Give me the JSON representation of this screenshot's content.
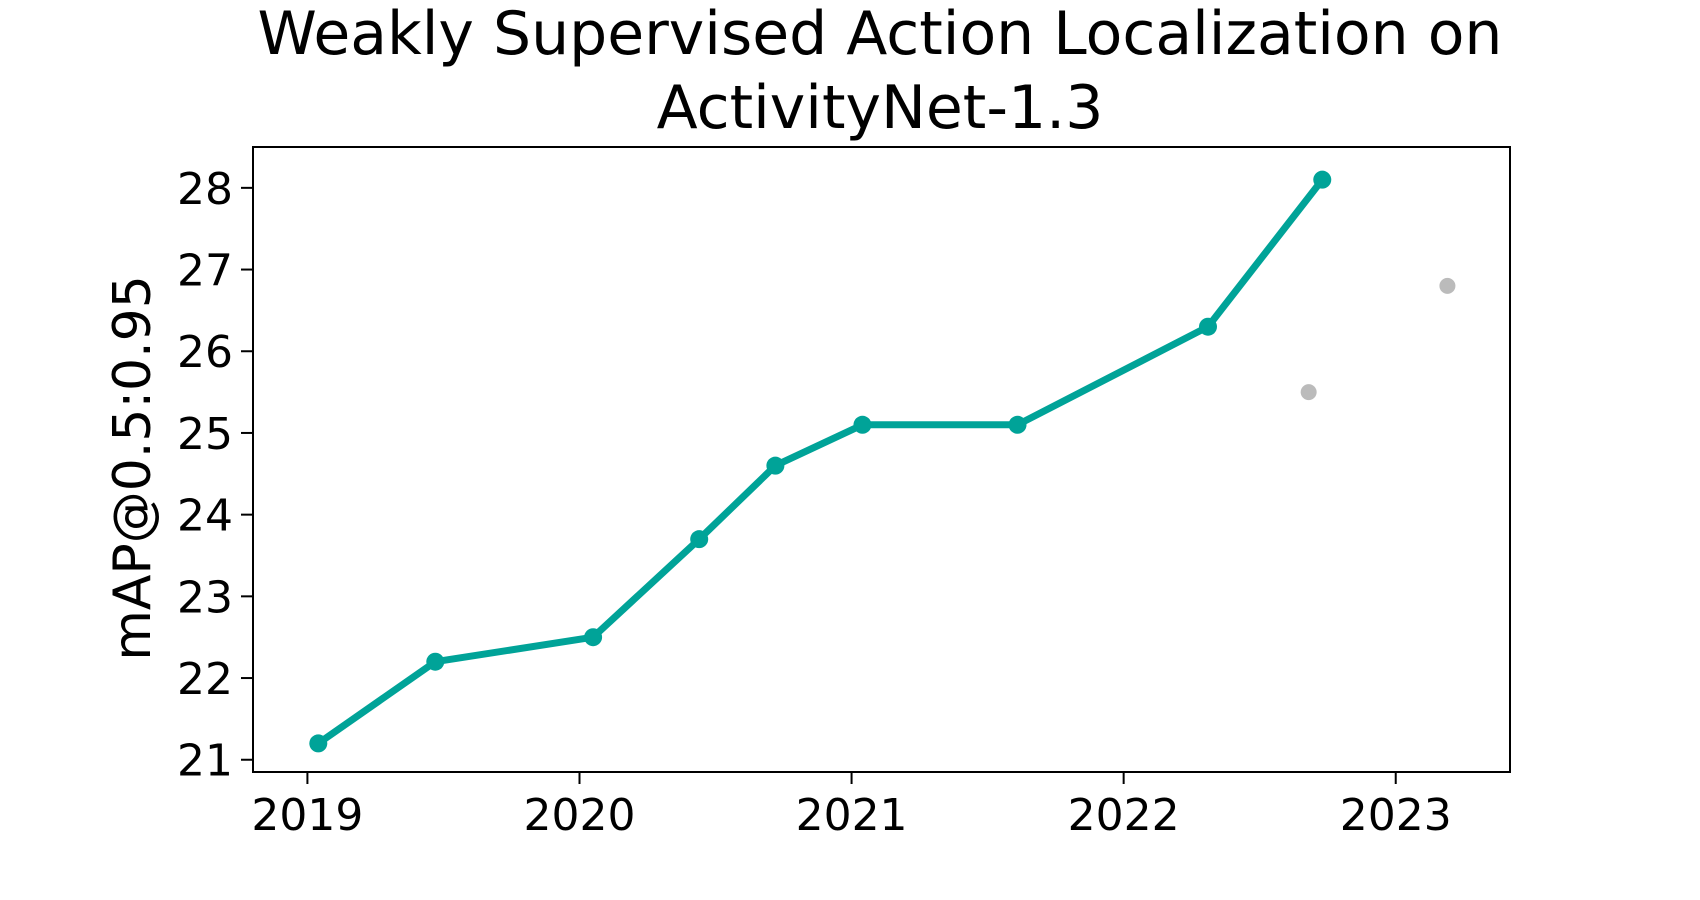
{
  "chart_data": {
    "type": "line",
    "title_line1": "Weakly Supervised Action Localization on",
    "title_line2": "ActivityNet-1.3",
    "xlabel": "",
    "ylabel": "mAP@0.5:0.95",
    "xlim": [
      2018.8,
      2023.42
    ],
    "ylim": [
      20.85,
      28.5
    ],
    "x_ticks": [
      2019,
      2020,
      2021,
      2022,
      2023
    ],
    "y_ticks": [
      21,
      22,
      23,
      24,
      25,
      26,
      27,
      28
    ],
    "grid": false,
    "series": [
      {
        "color": "#00a398",
        "points": [
          {
            "x": 2019.04,
            "y": 21.2
          },
          {
            "x": 2019.47,
            "y": 22.2
          },
          {
            "x": 2020.05,
            "y": 22.5
          },
          {
            "x": 2020.44,
            "y": 23.7
          },
          {
            "x": 2020.72,
            "y": 24.6
          },
          {
            "x": 2021.04,
            "y": 25.1
          },
          {
            "x": 2021.61,
            "y": 25.1
          },
          {
            "x": 2022.31,
            "y": 26.3
          },
          {
            "x": 2022.73,
            "y": 28.1
          }
        ]
      }
    ],
    "other_points": {
      "color": "#bbbbbb",
      "points": [
        {
          "x": 2022.68,
          "y": 25.5
        },
        {
          "x": 2023.19,
          "y": 26.8
        }
      ]
    }
  }
}
